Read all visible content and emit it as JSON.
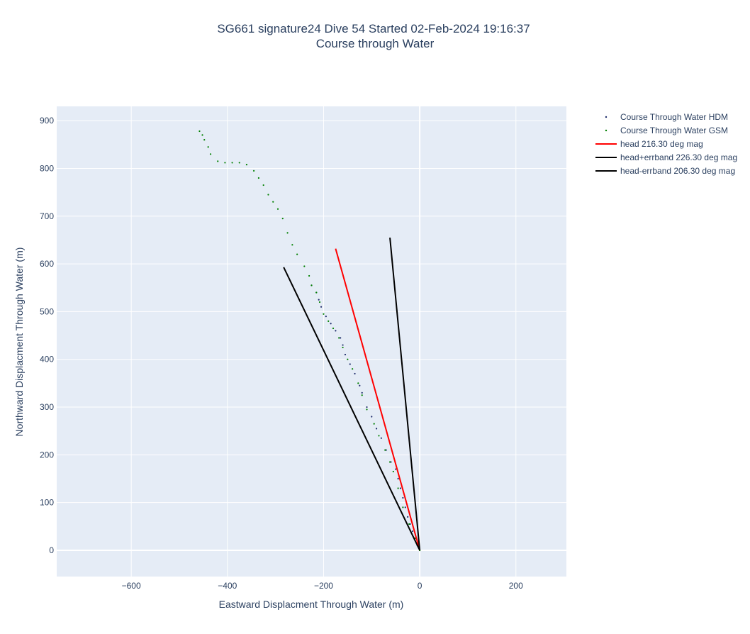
{
  "chart_data": {
    "type": "scatter",
    "title": "SG661 signature24 Dive 54 Started 02-Feb-2024 19:16:37",
    "subtitle": "Course through Water",
    "xlabel": "Eastward Displacment Through Water (m)",
    "ylabel": "Northward Displacment Through Water (m)",
    "xlim": [
      -755,
      305
    ],
    "ylim": [
      -55,
      930
    ],
    "xticks": [
      -600,
      -400,
      -200,
      0,
      200
    ],
    "yticks": [
      0,
      100,
      200,
      300,
      400,
      500,
      600,
      700,
      800,
      900
    ],
    "xtick_labels": [
      "−600",
      "−400",
      "−200",
      "0",
      "200"
    ],
    "ytick_labels": [
      "0",
      "100",
      "200",
      "300",
      "400",
      "500",
      "600",
      "700",
      "800",
      "900"
    ],
    "grid": true,
    "legend_position": "right",
    "series": [
      {
        "name": "Course Through Water HDM",
        "kind": "markers",
        "color": "#1f2d6b",
        "points": [
          [
            0,
            0
          ],
          [
            -5,
            10
          ],
          [
            -10,
            25
          ],
          [
            -15,
            40
          ],
          [
            -20,
            55
          ],
          [
            -25,
            70
          ],
          [
            -30,
            90
          ],
          [
            -35,
            110
          ],
          [
            -40,
            130
          ],
          [
            -45,
            150
          ],
          [
            -50,
            170
          ],
          [
            -60,
            185
          ],
          [
            -70,
            210
          ],
          [
            -80,
            235
          ],
          [
            -90,
            255
          ],
          [
            -100,
            280
          ],
          [
            -110,
            300
          ],
          [
            -120,
            330
          ],
          [
            -125,
            345
          ],
          [
            -135,
            370
          ],
          [
            -145,
            390
          ],
          [
            -155,
            410
          ],
          [
            -160,
            430
          ],
          [
            -165,
            445
          ],
          [
            -175,
            460
          ],
          [
            -185,
            475
          ],
          [
            -195,
            490
          ],
          [
            -205,
            510
          ],
          [
            -210,
            525
          ],
          [
            -215,
            540
          ],
          [
            -225,
            555
          ]
        ]
      },
      {
        "name": "Course Through Water GSM",
        "kind": "markers",
        "color": "#008000",
        "points": [
          [
            0,
            0
          ],
          [
            -10,
            25
          ],
          [
            -22,
            55
          ],
          [
            -35,
            90
          ],
          [
            -45,
            130
          ],
          [
            -55,
            165
          ],
          [
            -62,
            185
          ],
          [
            -72,
            210
          ],
          [
            -85,
            240
          ],
          [
            -95,
            265
          ],
          [
            -110,
            295
          ],
          [
            -120,
            325
          ],
          [
            -128,
            350
          ],
          [
            -140,
            380
          ],
          [
            -150,
            400
          ],
          [
            -160,
            425
          ],
          [
            -168,
            445
          ],
          [
            -180,
            465
          ],
          [
            -190,
            480
          ],
          [
            -200,
            495
          ],
          [
            -208,
            520
          ],
          [
            -215,
            540
          ],
          [
            -225,
            555
          ],
          [
            -230,
            575
          ],
          [
            -240,
            595
          ],
          [
            -255,
            620
          ],
          [
            -265,
            640
          ],
          [
            -275,
            665
          ],
          [
            -285,
            695
          ],
          [
            -295,
            715
          ],
          [
            -305,
            730
          ],
          [
            -315,
            745
          ],
          [
            -325,
            765
          ],
          [
            -335,
            780
          ],
          [
            -345,
            795
          ],
          [
            -360,
            808
          ],
          [
            -375,
            812
          ],
          [
            -390,
            812
          ],
          [
            -405,
            812
          ],
          [
            -420,
            815
          ],
          [
            -435,
            830
          ],
          [
            -440,
            845
          ],
          [
            -448,
            860
          ],
          [
            -452,
            870
          ],
          [
            -458,
            878
          ]
        ]
      },
      {
        "name": "head 216.30 deg mag",
        "kind": "line",
        "color": "#ff0000",
        "points": [
          [
            0,
            0
          ],
          [
            -175,
            632
          ]
        ]
      },
      {
        "name": "head+errband 226.30 deg mag",
        "kind": "line",
        "color": "#000000",
        "points": [
          [
            0,
            0
          ],
          [
            -283,
            593
          ]
        ]
      },
      {
        "name": "head-errband 206.30 deg mag",
        "kind": "line",
        "color": "#000000",
        "points": [
          [
            0,
            0
          ],
          [
            -62,
            655
          ]
        ]
      }
    ]
  }
}
